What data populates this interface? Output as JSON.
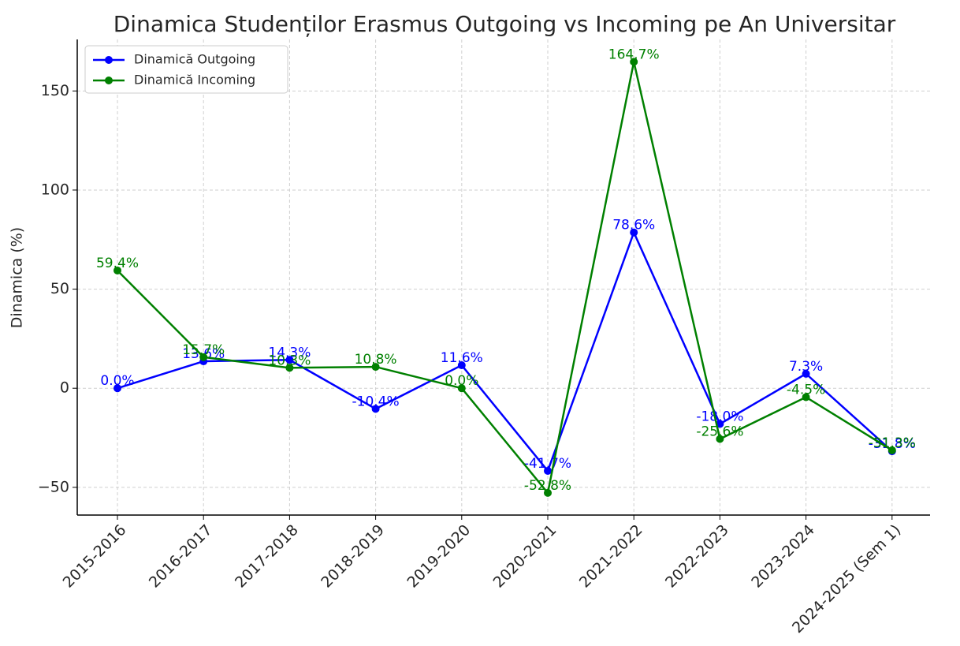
{
  "chart_data": {
    "type": "line",
    "title": "Dinamica Studenților Erasmus Outgoing vs Incoming pe An Universitar",
    "y_label": "Dinamica (%)",
    "categories": [
      "2015-2016",
      "2016-2017",
      "2017-2018",
      "2018-2019",
      "2019-2020",
      "2020-2021",
      "2021-2022",
      "2022-2023",
      "2023-2024",
      "2024-2025 (Sem 1)"
    ],
    "series": [
      {
        "name": "Dinamică Outgoing",
        "color": "#0000ff",
        "values": [
          0.0,
          13.6,
          14.3,
          -10.4,
          11.6,
          -41.7,
          78.6,
          -18.0,
          7.3,
          -31.8
        ],
        "value_labels": [
          "0.0%",
          "13.6%",
          "14.3%",
          "-10.4%",
          "11.6%",
          "-41.7%",
          "78.6%",
          "-18.0%",
          "7.3%",
          "-31.8%"
        ]
      },
      {
        "name": "Dinamică Incoming",
        "color": "#008000",
        "values": [
          59.4,
          15.7,
          10.3,
          10.8,
          0.0,
          -52.8,
          164.7,
          -25.6,
          -4.5,
          -31.3
        ],
        "value_labels": [
          "59.4%",
          "15.7%",
          "10.3%",
          "10.8%",
          "0.0%",
          "-52.8%",
          "164.7%",
          "-25.6%",
          "-4.5%",
          "-31.3%"
        ]
      }
    ],
    "ylim": [
      -64,
      176
    ],
    "yticks": [
      {
        "value": -50,
        "label": "−50"
      },
      0,
      50,
      100,
      150
    ],
    "grid": true,
    "legend": "upper left"
  }
}
